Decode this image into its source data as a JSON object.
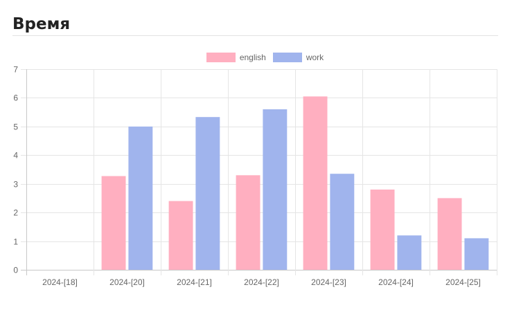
{
  "page": {
    "title": "Время"
  },
  "chart_data": {
    "type": "bar",
    "title": "",
    "xlabel": "",
    "ylabel": "",
    "categories": [
      "2024-[18]",
      "2024-[20]",
      "2024-[21]",
      "2024-[22]",
      "2024-[23]",
      "2024-[24]",
      "2024-[25]"
    ],
    "series": [
      {
        "name": "english",
        "color": "#ffafc0",
        "values": [
          0,
          3.27,
          2.4,
          3.3,
          6.05,
          2.8,
          2.5
        ]
      },
      {
        "name": "work",
        "color": "#a0b4ed",
        "values": [
          0,
          5.0,
          5.33,
          5.6,
          3.35,
          1.2,
          1.1
        ]
      }
    ],
    "ylim": [
      0,
      7
    ],
    "yticks": [
      "0",
      "1",
      "2",
      "3",
      "4",
      "5",
      "6",
      "7"
    ],
    "grid": true,
    "legend_position": "top"
  }
}
